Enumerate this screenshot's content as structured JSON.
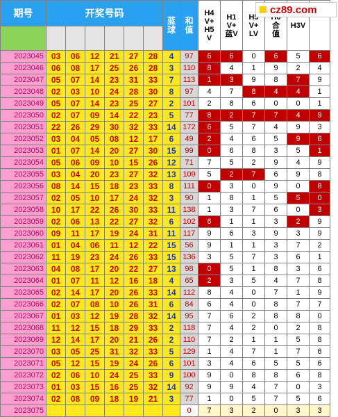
{
  "header": {
    "period": "期号",
    "red_balls": "开奖号码",
    "blue_ball": [
      "蓝",
      "球"
    ],
    "sum": [
      "和",
      "值"
    ],
    "h4": [
      "H4",
      "V+",
      "H5",
      "V"
    ],
    "h1": [
      "H1",
      "V+",
      "蓝V"
    ],
    "h5": [
      "H5",
      "V+",
      "LV"
    ],
    "h6": [
      "H6",
      "合",
      "值"
    ],
    "h3": "H3V"
  },
  "watermark": "cz89.com",
  "rows": [
    {
      "p": "2023045",
      "r": [
        "03",
        "06",
        "12",
        "21",
        "27",
        "28"
      ],
      "b": "4",
      "s": "97",
      "c": [
        {
          "v": "6",
          "d": true
        },
        {
          "v": "6",
          "d": true
        },
        {
          "v": "0",
          "d": false
        },
        {
          "v": "6",
          "d": true
        },
        {
          "v": "5",
          "d": false
        },
        {
          "v": "6",
          "d": true
        }
      ]
    },
    {
      "p": "2023046",
      "r": [
        "06",
        "08",
        "17",
        "25",
        "26",
        "28"
      ],
      "b": "3",
      "s": "110",
      "c": [
        {
          "v": "8",
          "d": true
        },
        {
          "v": "4",
          "d": false
        },
        {
          "v": "1",
          "d": false
        },
        {
          "v": "9",
          "d": false
        },
        {
          "v": "2",
          "d": false
        },
        {
          "v": "4",
          "d": false
        }
      ]
    },
    {
      "p": "2023047",
      "r": [
        "05",
        "07",
        "14",
        "23",
        "31",
        "33"
      ],
      "b": "7",
      "s": "113",
      "c": [
        {
          "v": "1",
          "d": true
        },
        {
          "v": "3",
          "d": true
        },
        {
          "v": "9",
          "d": false
        },
        {
          "v": "8",
          "d": false
        },
        {
          "v": "7",
          "d": true
        },
        {
          "v": "9",
          "d": false
        }
      ]
    },
    {
      "p": "2023048",
      "r": [
        "02",
        "03",
        "10",
        "24",
        "28",
        "30"
      ],
      "b": "8",
      "s": "97",
      "c": [
        {
          "v": "4",
          "d": false
        },
        {
          "v": "7",
          "d": false
        },
        {
          "v": "8",
          "d": true
        },
        {
          "v": "4",
          "d": true
        },
        {
          "v": "4",
          "d": true
        },
        {
          "v": "1",
          "d": false
        }
      ]
    },
    {
      "p": "2023049",
      "r": [
        "05",
        "07",
        "14",
        "23",
        "25",
        "27"
      ],
      "b": "2",
      "s": "101",
      "c": [
        {
          "v": "2",
          "d": false
        },
        {
          "v": "8",
          "d": false
        },
        {
          "v": "6",
          "d": false
        },
        {
          "v": "0",
          "d": false
        },
        {
          "v": "0",
          "d": false
        },
        {
          "v": "1",
          "d": false
        }
      ]
    },
    {
      "p": "2023050",
      "r": [
        "02",
        "07",
        "09",
        "14",
        "22",
        "23"
      ],
      "b": "5",
      "s": "77",
      "c": [
        {
          "v": "8",
          "d": true
        },
        {
          "v": "2",
          "d": true
        },
        {
          "v": "7",
          "d": true
        },
        {
          "v": "7",
          "d": true
        },
        {
          "v": "4",
          "d": true
        },
        {
          "v": "9",
          "d": true
        }
      ]
    },
    {
      "p": "2023051",
      "r": [
        "22",
        "26",
        "29",
        "30",
        "32",
        "33"
      ],
      "b": "14",
      "s": "172",
      "c": [
        {
          "v": "6",
          "d": true
        },
        {
          "v": "5",
          "d": false
        },
        {
          "v": "7",
          "d": false
        },
        {
          "v": "4",
          "d": false
        },
        {
          "v": "9",
          "d": false
        },
        {
          "v": "3",
          "d": false
        }
      ]
    },
    {
      "p": "2023052",
      "r": [
        "03",
        "04",
        "05",
        "08",
        "12",
        "17"
      ],
      "b": "6",
      "s": "49",
      "c": [
        {
          "v": "2",
          "d": true
        },
        {
          "v": "4",
          "d": false
        },
        {
          "v": "6",
          "d": false
        },
        {
          "v": "5",
          "d": false
        },
        {
          "v": "9",
          "d": true
        },
        {
          "v": "6",
          "d": true
        }
      ]
    },
    {
      "p": "2023053",
      "r": [
        "01",
        "07",
        "14",
        "20",
        "27",
        "30"
      ],
      "b": "15",
      "s": "99",
      "c": [
        {
          "v": "0",
          "d": true
        },
        {
          "v": "6",
          "d": false
        },
        {
          "v": "8",
          "d": false
        },
        {
          "v": "3",
          "d": false
        },
        {
          "v": "5",
          "d": false
        },
        {
          "v": "1",
          "d": true
        }
      ]
    },
    {
      "p": "2023054",
      "r": [
        "05",
        "06",
        "09",
        "10",
        "15",
        "26"
      ],
      "b": "12",
      "s": "71",
      "c": [
        {
          "v": "7",
          "d": false
        },
        {
          "v": "5",
          "d": false
        },
        {
          "v": "2",
          "d": false
        },
        {
          "v": "9",
          "d": false
        },
        {
          "v": "4",
          "d": false
        },
        {
          "v": "9",
          "d": false
        }
      ]
    },
    {
      "p": "2023055",
      "r": [
        "03",
        "04",
        "20",
        "23",
        "27",
        "32"
      ],
      "b": "13",
      "s": "109",
      "c": [
        {
          "v": "5",
          "d": false
        },
        {
          "v": "2",
          "d": true
        },
        {
          "v": "7",
          "d": true
        },
        {
          "v": "6",
          "d": false
        },
        {
          "v": "9",
          "d": false
        },
        {
          "v": "8",
          "d": false
        }
      ]
    },
    {
      "p": "2023056",
      "r": [
        "08",
        "14",
        "15",
        "18",
        "23",
        "33"
      ],
      "b": "8",
      "s": "111",
      "c": [
        {
          "v": "0",
          "d": true
        },
        {
          "v": "3",
          "d": false
        },
        {
          "v": "0",
          "d": false
        },
        {
          "v": "9",
          "d": false
        },
        {
          "v": "0",
          "d": false
        },
        {
          "v": "8",
          "d": true
        }
      ]
    },
    {
      "p": "2023057",
      "r": [
        "02",
        "05",
        "10",
        "17",
        "24",
        "32"
      ],
      "b": "3",
      "s": "90",
      "c": [
        {
          "v": "1",
          "d": false
        },
        {
          "v": "8",
          "d": false
        },
        {
          "v": "1",
          "d": false
        },
        {
          "v": "5",
          "d": false
        },
        {
          "v": "5",
          "d": true
        },
        {
          "v": "0",
          "d": true
        }
      ]
    },
    {
      "p": "2023058",
      "r": [
        "10",
        "17",
        "22",
        "26",
        "30",
        "33"
      ],
      "b": "11",
      "s": "138",
      "c": [
        {
          "v": "1",
          "d": false
        },
        {
          "v": "3",
          "d": false
        },
        {
          "v": "7",
          "d": false
        },
        {
          "v": "6",
          "d": false
        },
        {
          "v": "0",
          "d": false
        },
        {
          "v": "3",
          "d": true
        }
      ]
    },
    {
      "p": "2023059",
      "r": [
        "02",
        "06",
        "13",
        "22",
        "27",
        "32"
      ],
      "b": "6",
      "s": "102",
      "c": [
        {
          "v": "6",
          "d": true
        },
        {
          "v": "1",
          "d": false
        },
        {
          "v": "1",
          "d": false
        },
        {
          "v": "3",
          "d": false
        },
        {
          "v": "2",
          "d": true
        },
        {
          "v": "9",
          "d": false
        }
      ]
    },
    {
      "p": "2023060",
      "r": [
        "09",
        "11",
        "17",
        "19",
        "24",
        "31"
      ],
      "b": "11",
      "s": "117",
      "c": [
        {
          "v": "9",
          "d": false
        },
        {
          "v": "6",
          "d": false
        },
        {
          "v": "3",
          "d": false
        },
        {
          "v": "9",
          "d": false
        },
        {
          "v": "3",
          "d": false
        },
        {
          "v": "9",
          "d": false
        }
      ]
    },
    {
      "p": "2023061",
      "r": [
        "01",
        "04",
        "06",
        "11",
        "12",
        "22"
      ],
      "b": "15",
      "s": "56",
      "c": [
        {
          "v": "9",
          "d": false
        },
        {
          "v": "1",
          "d": false
        },
        {
          "v": "1",
          "d": false
        },
        {
          "v": "3",
          "d": false
        },
        {
          "v": "7",
          "d": false
        },
        {
          "v": "2",
          "d": false
        }
      ]
    },
    {
      "p": "2023062",
      "r": [
        "11",
        "19",
        "23",
        "24",
        "26",
        "33"
      ],
      "b": "15",
      "s": "136",
      "c": [
        {
          "v": "3",
          "d": false
        },
        {
          "v": "5",
          "d": false
        },
        {
          "v": "7",
          "d": false
        },
        {
          "v": "3",
          "d": false
        },
        {
          "v": "6",
          "d": false
        },
        {
          "v": "1",
          "d": false
        }
      ]
    },
    {
      "p": "2023063",
      "r": [
        "04",
        "08",
        "17",
        "20",
        "22",
        "27"
      ],
      "b": "13",
      "s": "98",
      "c": [
        {
          "v": "0",
          "d": true
        },
        {
          "v": "5",
          "d": false
        },
        {
          "v": "1",
          "d": false
        },
        {
          "v": "8",
          "d": false
        },
        {
          "v": "3",
          "d": false
        },
        {
          "v": "6",
          "d": false
        }
      ]
    },
    {
      "p": "2023064",
      "r": [
        "01",
        "07",
        "11",
        "12",
        "16",
        "18"
      ],
      "b": "4",
      "s": "65",
      "c": [
        {
          "v": "2",
          "d": true
        },
        {
          "v": "3",
          "d": false
        },
        {
          "v": "5",
          "d": false
        },
        {
          "v": "4",
          "d": false
        },
        {
          "v": "7",
          "d": false
        },
        {
          "v": "8",
          "d": false
        }
      ]
    },
    {
      "p": "2023065",
      "r": [
        "02",
        "14",
        "17",
        "20",
        "26",
        "33"
      ],
      "b": "14",
      "s": "112",
      "c": [
        {
          "v": "8",
          "d": false
        },
        {
          "v": "4",
          "d": false
        },
        {
          "v": "0",
          "d": false
        },
        {
          "v": "7",
          "d": false
        },
        {
          "v": "1",
          "d": false
        },
        {
          "v": "9",
          "d": false
        }
      ]
    },
    {
      "p": "2023066",
      "r": [
        "02",
        "07",
        "08",
        "10",
        "26",
        "31"
      ],
      "b": "6",
      "s": "84",
      "c": [
        {
          "v": "6",
          "d": false
        },
        {
          "v": "4",
          "d": false
        },
        {
          "v": "0",
          "d": false
        },
        {
          "v": "8",
          "d": false
        },
        {
          "v": "7",
          "d": false
        },
        {
          "v": "7",
          "d": false
        }
      ]
    },
    {
      "p": "2023067",
      "r": [
        "01",
        "03",
        "12",
        "19",
        "28",
        "32"
      ],
      "b": "14",
      "s": "95",
      "c": [
        {
          "v": "7",
          "d": false
        },
        {
          "v": "6",
          "d": false
        },
        {
          "v": "2",
          "d": false
        },
        {
          "v": "8",
          "d": false
        },
        {
          "v": "8",
          "d": false
        },
        {
          "v": "0",
          "d": false
        }
      ]
    },
    {
      "p": "2023068",
      "r": [
        "11",
        "12",
        "15",
        "18",
        "29",
        "33"
      ],
      "b": "2",
      "s": "118",
      "c": [
        {
          "v": "7",
          "d": false
        },
        {
          "v": "4",
          "d": false
        },
        {
          "v": "2",
          "d": false
        },
        {
          "v": "0",
          "d": false
        },
        {
          "v": "2",
          "d": false
        },
        {
          "v": "8",
          "d": false
        }
      ]
    },
    {
      "p": "2023069",
      "r": [
        "12",
        "14",
        "17",
        "20",
        "21",
        "26"
      ],
      "b": "2",
      "s": "110",
      "c": [
        {
          "v": "7",
          "d": false
        },
        {
          "v": "2",
          "d": false
        },
        {
          "v": "1",
          "d": false
        },
        {
          "v": "1",
          "d": false
        },
        {
          "v": "5",
          "d": false
        },
        {
          "v": "8",
          "d": false
        }
      ]
    },
    {
      "p": "2023070",
      "r": [
        "03",
        "05",
        "25",
        "31",
        "32",
        "33"
      ],
      "b": "5",
      "s": "129",
      "c": [
        {
          "v": "1",
          "d": false
        },
        {
          "v": "4",
          "d": false
        },
        {
          "v": "7",
          "d": false
        },
        {
          "v": "1",
          "d": false
        },
        {
          "v": "7",
          "d": false
        },
        {
          "v": "6",
          "d": false
        }
      ]
    },
    {
      "p": "2023071",
      "r": [
        "05",
        "12",
        "15",
        "19",
        "24",
        "26"
      ],
      "b": "6",
      "s": "101",
      "c": [
        {
          "v": "3",
          "d": false
        },
        {
          "v": "4",
          "d": false
        },
        {
          "v": "6",
          "d": false
        },
        {
          "v": "5",
          "d": false
        },
        {
          "v": "5",
          "d": false
        },
        {
          "v": "6",
          "d": false
        }
      ]
    },
    {
      "p": "2023072",
      "r": [
        "02",
        "06",
        "10",
        "24",
        "25",
        "33"
      ],
      "b": "9",
      "s": "100",
      "c": [
        {
          "v": "9",
          "d": false
        },
        {
          "v": "0",
          "d": false
        },
        {
          "v": "8",
          "d": false
        },
        {
          "v": "8",
          "d": false
        },
        {
          "v": "6",
          "d": false
        },
        {
          "v": "8",
          "d": false
        }
      ]
    },
    {
      "p": "2023073",
      "r": [
        "01",
        "03",
        "15",
        "16",
        "25",
        "32"
      ],
      "b": "14",
      "s": "92",
      "c": [
        {
          "v": "9",
          "d": false
        },
        {
          "v": "9",
          "d": false
        },
        {
          "v": "4",
          "d": false
        },
        {
          "v": "7",
          "d": false
        },
        {
          "v": "0",
          "d": false
        },
        {
          "v": "3",
          "d": false
        }
      ]
    },
    {
      "p": "2023074",
      "r": [
        "02",
        "08",
        "09",
        "18",
        "19",
        "21"
      ],
      "b": "3",
      "s": "77",
      "c": [
        {
          "v": "1",
          "d": false
        },
        {
          "v": "0",
          "d": false
        },
        {
          "v": "5",
          "d": false
        },
        {
          "v": "7",
          "d": false
        },
        {
          "v": "5",
          "d": false
        },
        {
          "v": "6",
          "d": false
        }
      ]
    },
    {
      "p": "2023075",
      "r": [
        "",
        "",
        "",
        "",
        "",
        ""
      ],
      "b": "",
      "s": "0",
      "c": [
        {
          "v": "7",
          "d": false
        },
        {
          "v": "3",
          "d": false
        },
        {
          "v": "2",
          "d": false
        },
        {
          "v": "0",
          "d": false
        },
        {
          "v": "3",
          "d": false
        },
        {
          "v": "3",
          "d": false
        }
      ]
    }
  ]
}
